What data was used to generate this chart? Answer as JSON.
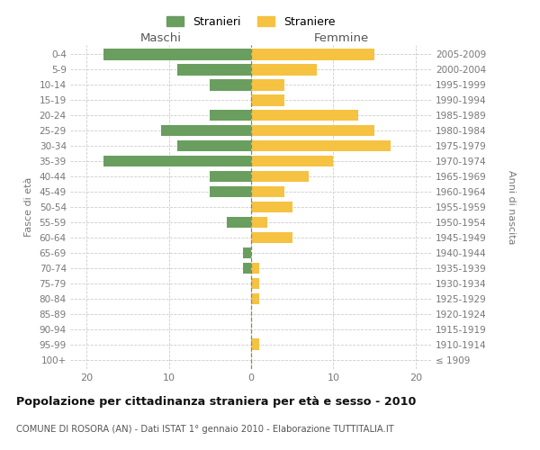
{
  "age_groups": [
    "100+",
    "95-99",
    "90-94",
    "85-89",
    "80-84",
    "75-79",
    "70-74",
    "65-69",
    "60-64",
    "55-59",
    "50-54",
    "45-49",
    "40-44",
    "35-39",
    "30-34",
    "25-29",
    "20-24",
    "15-19",
    "10-14",
    "5-9",
    "0-4"
  ],
  "birth_years": [
    "≤ 1909",
    "1910-1914",
    "1915-1919",
    "1920-1924",
    "1925-1929",
    "1930-1934",
    "1935-1939",
    "1940-1944",
    "1945-1949",
    "1950-1954",
    "1955-1959",
    "1960-1964",
    "1965-1969",
    "1970-1974",
    "1975-1979",
    "1980-1984",
    "1985-1989",
    "1990-1994",
    "1995-1999",
    "2000-2004",
    "2005-2009"
  ],
  "maschi": [
    0,
    0,
    0,
    0,
    0,
    0,
    1,
    1,
    0,
    3,
    0,
    5,
    5,
    18,
    9,
    11,
    5,
    0,
    5,
    9,
    18
  ],
  "femmine": [
    0,
    1,
    0,
    0,
    1,
    1,
    1,
    0,
    5,
    2,
    5,
    4,
    7,
    10,
    17,
    15,
    13,
    4,
    4,
    8,
    15
  ],
  "color_maschi": "#6a9e5f",
  "color_femmine": "#f5c242",
  "title": "Popolazione per cittadinanza straniera per età e sesso - 2010",
  "subtitle": "COMUNE DI ROSORA (AN) - Dati ISTAT 1° gennaio 2010 - Elaborazione TUTTITALIA.IT",
  "label_maschi": "Maschi",
  "label_femmine": "Femmine",
  "ylabel_left": "Fasce di età",
  "ylabel_right": "Anni di nascita",
  "legend_maschi": "Stranieri",
  "legend_femmine": "Straniere",
  "xlim": 22,
  "background_color": "#ffffff",
  "grid_color": "#cccccc"
}
